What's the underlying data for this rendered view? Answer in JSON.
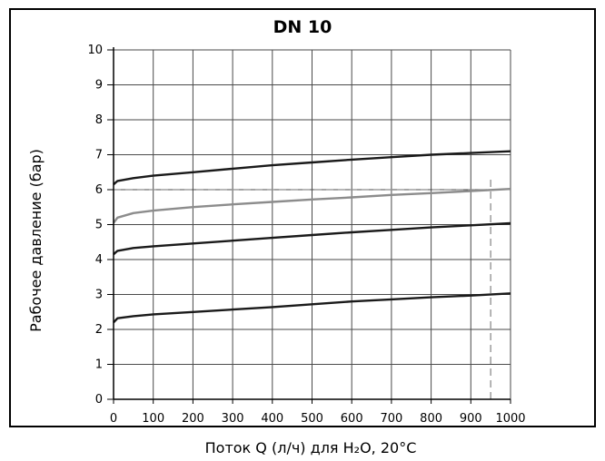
{
  "chart_data": {
    "type": "line",
    "title": "DN 10",
    "xlabel": "Поток Q (л/ч) для H₂O, 20°C",
    "ylabel": "Рабочее давление  (бар)",
    "xlim": [
      0,
      1000
    ],
    "ylim": [
      0,
      10
    ],
    "x_ticks": [
      0,
      100,
      200,
      300,
      400,
      500,
      600,
      700,
      800,
      900,
      1000
    ],
    "y_ticks": [
      0,
      1,
      2,
      3,
      4,
      5,
      6,
      7,
      8,
      9,
      10
    ],
    "grid": true,
    "series": [
      {
        "color": "#1a1a1a",
        "x": [
          0,
          10,
          50,
          100,
          200,
          300,
          400,
          500,
          600,
          700,
          800,
          900,
          1000
        ],
        "y": [
          6.15,
          6.25,
          6.33,
          6.4,
          6.5,
          6.6,
          6.7,
          6.78,
          6.86,
          6.93,
          7.0,
          7.05,
          7.1
        ]
      },
      {
        "color": "#8c8c8c",
        "x": [
          0,
          10,
          50,
          100,
          200,
          300,
          400,
          500,
          600,
          700,
          800,
          900,
          1000
        ],
        "y": [
          5.05,
          5.2,
          5.33,
          5.4,
          5.5,
          5.58,
          5.65,
          5.72,
          5.78,
          5.85,
          5.9,
          5.96,
          6.02
        ]
      },
      {
        "color": "#1a1a1a",
        "x": [
          0,
          10,
          50,
          100,
          200,
          300,
          400,
          500,
          600,
          700,
          800,
          900,
          1000
        ],
        "y": [
          4.15,
          4.25,
          4.33,
          4.38,
          4.46,
          4.54,
          4.62,
          4.7,
          4.78,
          4.85,
          4.92,
          4.98,
          5.04
        ]
      },
      {
        "color": "#1a1a1a",
        "x": [
          0,
          10,
          50,
          100,
          200,
          300,
          400,
          500,
          600,
          700,
          800,
          900,
          1000
        ],
        "y": [
          2.2,
          2.32,
          2.38,
          2.43,
          2.5,
          2.57,
          2.64,
          2.72,
          2.8,
          2.86,
          2.92,
          2.97,
          3.03
        ]
      }
    ],
    "reference_lines": {
      "horizontal": {
        "y": 6,
        "x_from": 0,
        "x_to": 950
      },
      "vertical": {
        "x": 950,
        "y_from": 0,
        "y_to": 6.3
      }
    }
  }
}
